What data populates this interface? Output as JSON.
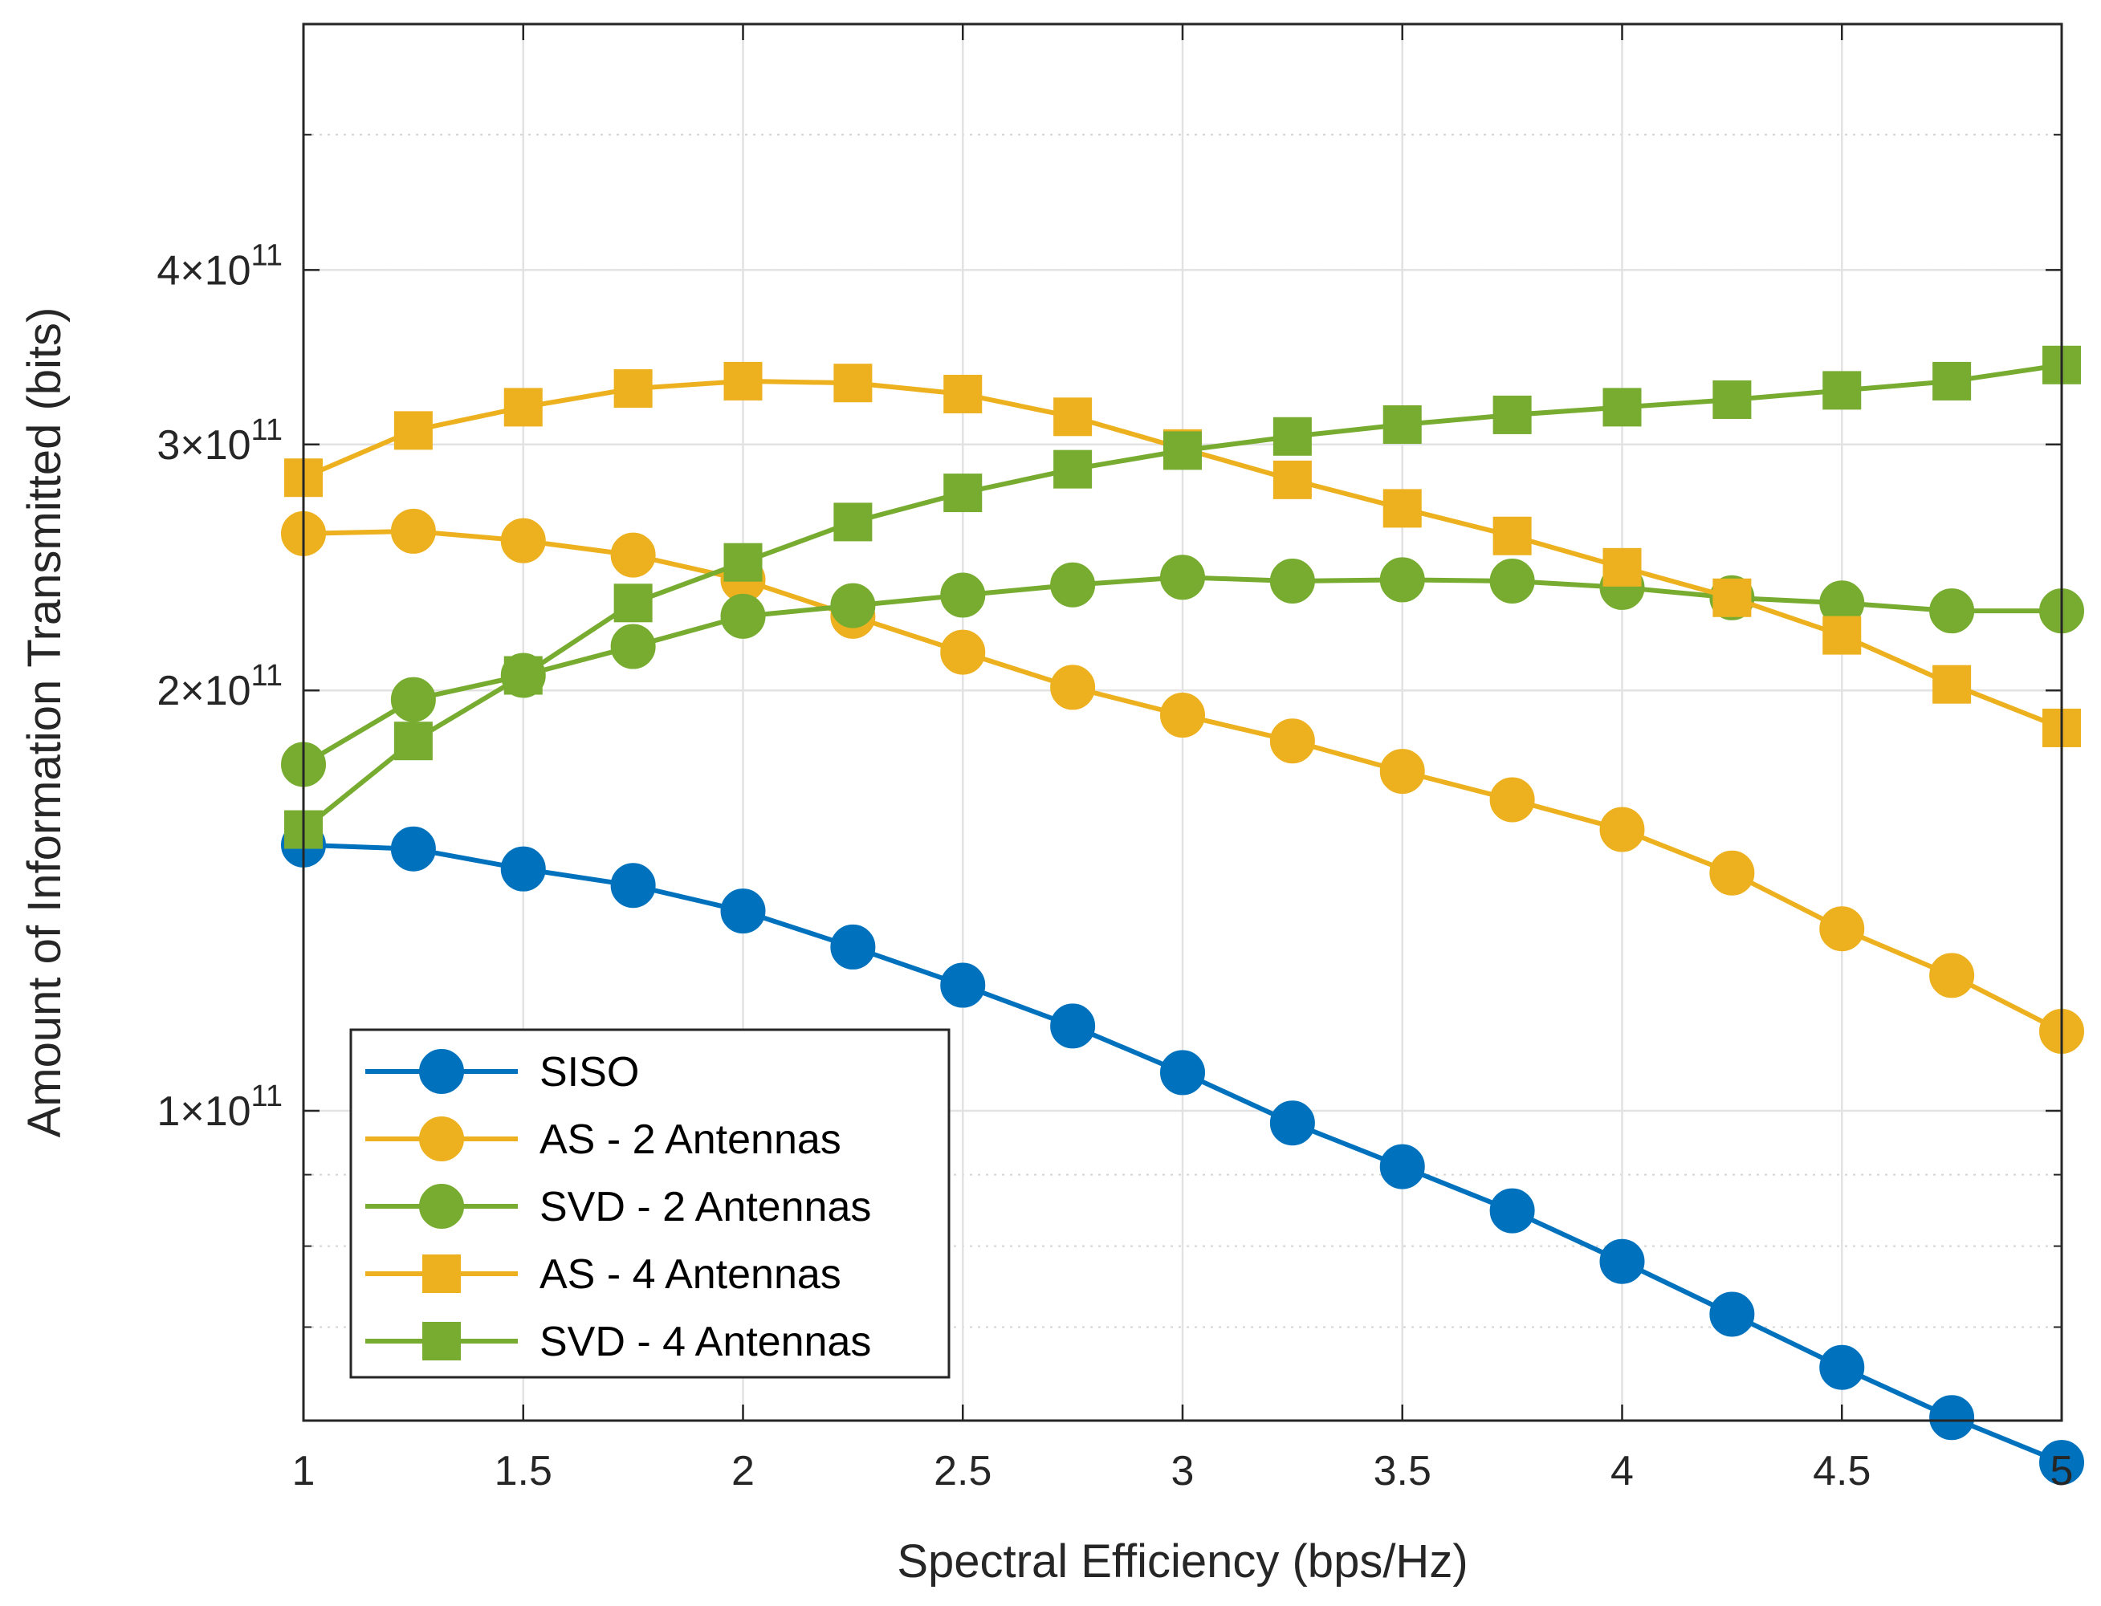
{
  "chart_data": {
    "type": "line",
    "title": "",
    "xlabel": "Spectral Efficiency (bps/Hz)",
    "ylabel": "Amount of Information Transmitted (bits)",
    "xscale": "linear",
    "yscale": "log",
    "xlim": [
      1,
      5
    ],
    "ylim": [
      60000000000,
      600000000000
    ],
    "grid": true,
    "legend_position": "bottom-left",
    "x": [
      1,
      1.25,
      1.5,
      1.75,
      2,
      2.25,
      2.5,
      2.75,
      3,
      3.25,
      3.5,
      3.75,
      4,
      4.25,
      4.5,
      4.75,
      5
    ],
    "xticks": [
      {
        "value": 1,
        "label": "1"
      },
      {
        "value": 1.5,
        "label": "1.5"
      },
      {
        "value": 2,
        "label": "2"
      },
      {
        "value": 2.5,
        "label": "2.5"
      },
      {
        "value": 3,
        "label": "3"
      },
      {
        "value": 3.5,
        "label": "3.5"
      },
      {
        "value": 4,
        "label": "4"
      },
      {
        "value": 4.5,
        "label": "4.5"
      },
      {
        "value": 5,
        "label": "5"
      }
    ],
    "yticks": [
      {
        "value": 100000000000,
        "mantissa": "1",
        "times": "×",
        "base": "10",
        "exponent": "11"
      },
      {
        "value": 200000000000,
        "mantissa": "2",
        "times": "×",
        "base": "10",
        "exponent": "11"
      },
      {
        "value": 300000000000,
        "mantissa": "3",
        "times": "×",
        "base": "10",
        "exponent": "11"
      },
      {
        "value": 400000000000,
        "mantissa": "4",
        "times": "×",
        "base": "10",
        "exponent": "11"
      }
    ],
    "series": [
      {
        "name": "SISO",
        "color": "#0072BD",
        "marker": "circle",
        "values": [
          155000000000,
          154000000000,
          149000000000,
          145000000000,
          139000000000,
          131000000000,
          123000000000,
          115000000000,
          106500000000,
          98000000000,
          91200000000,
          84800000000,
          78000000000,
          71500000000,
          65500000000,
          60300000000,
          56000000000
        ]
      },
      {
        "name": "AS - 2 Antennas",
        "color": "#EDB120",
        "marker": "circle",
        "values": [
          259000000000,
          260000000000,
          256000000000,
          250000000000,
          240000000000,
          226000000000,
          213000000000,
          201000000000,
          192000000000,
          184000000000,
          175000000000,
          167000000000,
          159000000000,
          148000000000,
          135000000000,
          125000000000,
          114000000000
        ]
      },
      {
        "name": "SVD - 2 Antennas",
        "color": "#77AC30",
        "marker": "circle",
        "values": [
          177000000000,
          197000000000,
          205000000000,
          215000000000,
          226000000000,
          230000000000,
          234000000000,
          238000000000,
          241000000000,
          239500000000,
          240000000000,
          239500000000,
          237000000000,
          233000000000,
          231000000000,
          228000000000,
          228000000000
        ]
      },
      {
        "name": "AS - 4 Antennas",
        "color": "#EDB120",
        "marker": "square",
        "values": [
          284000000000,
          307000000000,
          319000000000,
          329000000000,
          333000000000,
          332000000000,
          326000000000,
          314000000000,
          298000000000,
          283000000000,
          270000000000,
          258000000000,
          245000000000,
          233000000000,
          219000000000,
          202000000000,
          188000000000
        ]
      },
      {
        "name": "SVD - 4 Antennas",
        "color": "#77AC30",
        "marker": "square",
        "values": [
          159000000000,
          184000000000,
          205000000000,
          231000000000,
          247000000000,
          264000000000,
          277000000000,
          288000000000,
          297000000000,
          304000000000,
          310000000000,
          315000000000,
          319000000000,
          323000000000,
          328000000000,
          333000000000,
          342000000000
        ]
      }
    ]
  }
}
